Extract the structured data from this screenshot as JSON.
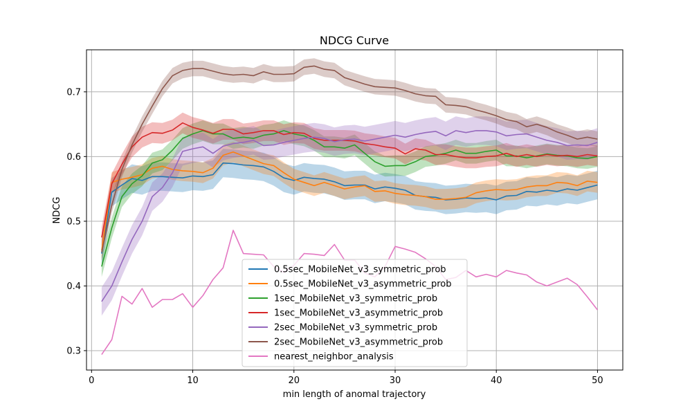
{
  "chart_data": {
    "type": "line",
    "title": "NDCG Curve",
    "xlabel": "min length of anomal trajectory",
    "ylabel": "NDCG",
    "xlim": [
      -0.5,
      52.5
    ],
    "ylim": [
      0.27,
      0.765
    ],
    "xticks": [
      0,
      10,
      20,
      30,
      40,
      50
    ],
    "yticks": [
      0.3,
      0.4,
      0.5,
      0.6,
      0.7
    ],
    "grid": true,
    "legend_position": "lower-center",
    "x": [
      1,
      2,
      3,
      4,
      5,
      6,
      7,
      8,
      9,
      10,
      11,
      12,
      13,
      14,
      15,
      16,
      17,
      18,
      19,
      20,
      21,
      22,
      23,
      24,
      25,
      26,
      27,
      28,
      29,
      30,
      31,
      32,
      33,
      34,
      35,
      36,
      37,
      38,
      39,
      40,
      41,
      42,
      43,
      44,
      45,
      46,
      47,
      48,
      49,
      50
    ],
    "series": [
      {
        "name": "0.5sec_MobileNet_v3_symmetric_prob",
        "color": "#1f77b4",
        "band": 0.022,
        "values": [
          0.45,
          0.545,
          0.556,
          0.566,
          0.563,
          0.569,
          0.569,
          0.568,
          0.567,
          0.57,
          0.569,
          0.572,
          0.59,
          0.589,
          0.587,
          0.586,
          0.584,
          0.577,
          0.567,
          0.563,
          0.568,
          0.566,
          0.565,
          0.561,
          0.555,
          0.556,
          0.556,
          0.55,
          0.553,
          0.551,
          0.548,
          0.54,
          0.538,
          0.537,
          0.533,
          0.534,
          0.536,
          0.535,
          0.536,
          0.533,
          0.539,
          0.54,
          0.546,
          0.545,
          0.548,
          0.546,
          0.55,
          0.548,
          0.552,
          0.556
        ]
      },
      {
        "name": "0.5sec_MobileNet_v3_asymmetric_prob",
        "color": "#ff7f0e",
        "band": 0.016,
        "values": [
          0.455,
          0.56,
          0.565,
          0.568,
          0.572,
          0.582,
          0.585,
          0.58,
          0.578,
          0.577,
          0.575,
          0.582,
          0.602,
          0.607,
          0.601,
          0.595,
          0.589,
          0.586,
          0.575,
          0.565,
          0.56,
          0.555,
          0.56,
          0.555,
          0.55,
          0.553,
          0.555,
          0.546,
          0.547,
          0.543,
          0.541,
          0.54,
          0.538,
          0.534,
          0.534,
          0.535,
          0.537,
          0.544,
          0.547,
          0.549,
          0.548,
          0.549,
          0.553,
          0.555,
          0.555,
          0.56,
          0.559,
          0.555,
          0.562,
          0.56
        ]
      },
      {
        "name": "1sec_MobileNet_v3_symmetric_prob",
        "color": "#2ca02c",
        "band": 0.016,
        "values": [
          0.43,
          0.49,
          0.538,
          0.558,
          0.57,
          0.59,
          0.595,
          0.61,
          0.628,
          0.635,
          0.64,
          0.635,
          0.635,
          0.628,
          0.63,
          0.628,
          0.633,
          0.635,
          0.64,
          0.635,
          0.632,
          0.625,
          0.615,
          0.615,
          0.613,
          0.618,
          0.605,
          0.592,
          0.585,
          0.586,
          0.586,
          0.592,
          0.6,
          0.602,
          0.605,
          0.61,
          0.605,
          0.605,
          0.608,
          0.61,
          0.601,
          0.601,
          0.598,
          0.601,
          0.604,
          0.602,
          0.601,
          0.598,
          0.597,
          0.6
        ]
      },
      {
        "name": "1sec_MobileNet_v3_asymmetric_prob",
        "color": "#d62728",
        "band": 0.016,
        "values": [
          0.475,
          0.558,
          0.588,
          0.615,
          0.63,
          0.637,
          0.636,
          0.641,
          0.652,
          0.645,
          0.641,
          0.636,
          0.642,
          0.642,
          0.635,
          0.637,
          0.64,
          0.64,
          0.634,
          0.637,
          0.636,
          0.628,
          0.625,
          0.625,
          0.625,
          0.624,
          0.62,
          0.618,
          0.615,
          0.613,
          0.604,
          0.612,
          0.61,
          0.603,
          0.603,
          0.6,
          0.598,
          0.598,
          0.6,
          0.601,
          0.605,
          0.6,
          0.603,
          0.6,
          0.603,
          0.601,
          0.602,
          0.6,
          0.603,
          0.601
        ]
      },
      {
        "name": "2sec_MobileNet_v3_symmetric_prob",
        "color": "#9467bd",
        "band": 0.022,
        "values": [
          0.376,
          0.4,
          0.437,
          0.472,
          0.5,
          0.538,
          0.552,
          0.575,
          0.608,
          0.612,
          0.615,
          0.605,
          0.616,
          0.62,
          0.622,
          0.625,
          0.617,
          0.618,
          0.622,
          0.625,
          0.628,
          0.63,
          0.628,
          0.623,
          0.626,
          0.627,
          0.624,
          0.627,
          0.63,
          0.633,
          0.63,
          0.634,
          0.637,
          0.639,
          0.632,
          0.64,
          0.637,
          0.64,
          0.64,
          0.638,
          0.632,
          0.634,
          0.635,
          0.63,
          0.625,
          0.622,
          0.617,
          0.618,
          0.617,
          0.622
        ]
      },
      {
        "name": "2sec_MobileNet_v3_asymmetric_prob",
        "color": "#8c564b",
        "band": 0.012,
        "values": [
          0.452,
          0.525,
          0.58,
          0.618,
          0.65,
          0.678,
          0.705,
          0.725,
          0.733,
          0.736,
          0.736,
          0.732,
          0.728,
          0.726,
          0.727,
          0.725,
          0.731,
          0.727,
          0.727,
          0.728,
          0.738,
          0.74,
          0.735,
          0.733,
          0.722,
          0.717,
          0.712,
          0.708,
          0.707,
          0.706,
          0.702,
          0.697,
          0.694,
          0.693,
          0.68,
          0.679,
          0.677,
          0.672,
          0.668,
          0.663,
          0.657,
          0.654,
          0.646,
          0.65,
          0.645,
          0.638,
          0.633,
          0.627,
          0.63,
          0.627
        ]
      },
      {
        "name": "nearest_neighbor_analysis",
        "color": "#e377c2",
        "band": 0,
        "values": [
          0.294,
          0.317,
          0.384,
          0.372,
          0.396,
          0.367,
          0.379,
          0.379,
          0.388,
          0.367,
          0.385,
          0.41,
          0.428,
          0.486,
          0.45,
          0.449,
          0.448,
          0.43,
          0.421,
          0.432,
          0.45,
          0.449,
          0.447,
          0.464,
          0.44,
          0.44,
          0.42,
          0.414,
          0.43,
          0.461,
          0.457,
          0.452,
          0.442,
          0.43,
          0.41,
          0.413,
          0.424,
          0.414,
          0.418,
          0.414,
          0.424,
          0.42,
          0.417,
          0.406,
          0.4,
          0.406,
          0.412,
          0.402,
          0.383,
          0.363
        ]
      }
    ]
  }
}
